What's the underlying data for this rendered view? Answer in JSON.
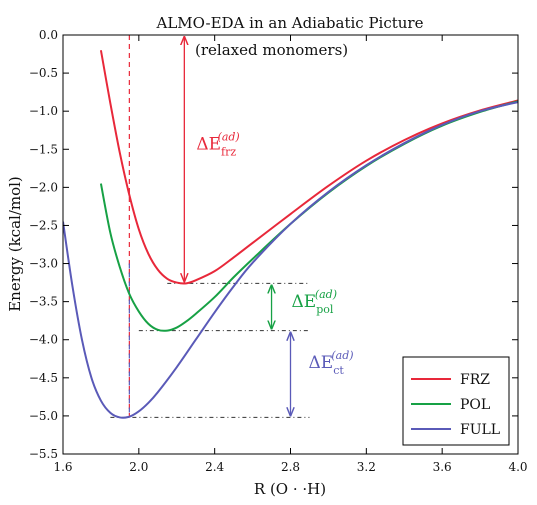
{
  "chart_data": {
    "type": "line",
    "title": "ALMO-EDA in an Adiabatic Picture",
    "subtitle": "(relaxed monomers)",
    "xlabel": "R (O · ·H)",
    "ylabel": "Energy (kcal/mol)",
    "xlim": [
      1.6,
      4.0
    ],
    "ylim": [
      -5.5,
      0.0
    ],
    "xticks": [
      "1.6",
      "2.0",
      "2.4",
      "2.8",
      "3.2",
      "3.6",
      "4.0"
    ],
    "yticks": [
      "0.0",
      "−0.5",
      "−1.0",
      "−1.5",
      "−2.0",
      "−2.5",
      "−3.0",
      "−3.5",
      "−4.0",
      "−4.5",
      "−5.0",
      "−5.5"
    ],
    "grid": false,
    "legend_position": "bottom-right",
    "series": [
      {
        "name": "FRZ",
        "color": "#e8283a",
        "x": [
          1.8,
          1.85,
          1.9,
          1.95,
          2.0,
          2.05,
          2.1,
          2.15,
          2.2,
          2.25,
          2.3,
          2.4,
          2.5,
          2.6,
          2.8,
          3.0,
          3.2,
          3.4,
          3.6,
          3.8,
          4.0
        ],
        "y": [
          -0.2,
          -0.9,
          -1.55,
          -2.1,
          -2.55,
          -2.87,
          -3.08,
          -3.2,
          -3.25,
          -3.26,
          -3.22,
          -3.1,
          -2.92,
          -2.73,
          -2.35,
          -1.98,
          -1.65,
          -1.38,
          -1.16,
          -0.99,
          -0.86
        ]
      },
      {
        "name": "POL",
        "color": "#17a145",
        "x": [
          1.8,
          1.85,
          1.9,
          1.95,
          2.0,
          2.05,
          2.1,
          2.15,
          2.2,
          2.25,
          2.3,
          2.4,
          2.5,
          2.6,
          2.8,
          3.0,
          3.2,
          3.4,
          3.6,
          3.8,
          4.0
        ],
        "y": [
          -1.95,
          -2.6,
          -3.05,
          -3.4,
          -3.63,
          -3.79,
          -3.87,
          -3.88,
          -3.84,
          -3.76,
          -3.66,
          -3.44,
          -3.18,
          -2.94,
          -2.48,
          -2.07,
          -1.72,
          -1.43,
          -1.19,
          -1.01,
          -0.87
        ]
      },
      {
        "name": "FULL",
        "color": "#5a5ab8",
        "x": [
          1.6,
          1.65,
          1.7,
          1.75,
          1.8,
          1.85,
          1.9,
          1.95,
          2.0,
          2.05,
          2.1,
          2.2,
          2.3,
          2.4,
          2.5,
          2.6,
          2.8,
          3.0,
          3.2,
          3.4,
          3.6,
          3.8,
          4.0
        ],
        "y": [
          -2.45,
          -3.3,
          -4.0,
          -4.5,
          -4.8,
          -4.96,
          -5.02,
          -5.01,
          -4.94,
          -4.83,
          -4.69,
          -4.36,
          -4.0,
          -3.64,
          -3.3,
          -2.99,
          -2.48,
          -2.06,
          -1.71,
          -1.42,
          -1.18,
          -1.0,
          -0.88
        ]
      }
    ],
    "reference_lines": {
      "vertical_x": 1.95,
      "frz_min": {
        "x_from": 2.15,
        "x_to": 2.9,
        "y": -3.26
      },
      "pol_min": {
        "x_from": 2.0,
        "x_to": 2.9,
        "y": -3.88
      },
      "full_min": {
        "x_from": 1.85,
        "x_to": 2.9,
        "y": -5.02
      }
    },
    "annotations": [
      {
        "id": "frz",
        "base": "ΔE",
        "sub": "frz",
        "sup": "(ad)",
        "color": "#e8283a",
        "arrow_x": 2.24,
        "y_from": 0.0,
        "y_to": -3.26
      },
      {
        "id": "pol",
        "base": "ΔE",
        "sub": "pol",
        "sup": "(ad)",
        "color": "#17a145",
        "arrow_x": 2.7,
        "y_from": -3.26,
        "y_to": -3.88
      },
      {
        "id": "ct",
        "base": "ΔE",
        "sub": "ct",
        "sup": "(ad)",
        "color": "#5a5ab8",
        "arrow_x": 2.8,
        "y_from": -3.88,
        "y_to": -5.02
      }
    ]
  }
}
